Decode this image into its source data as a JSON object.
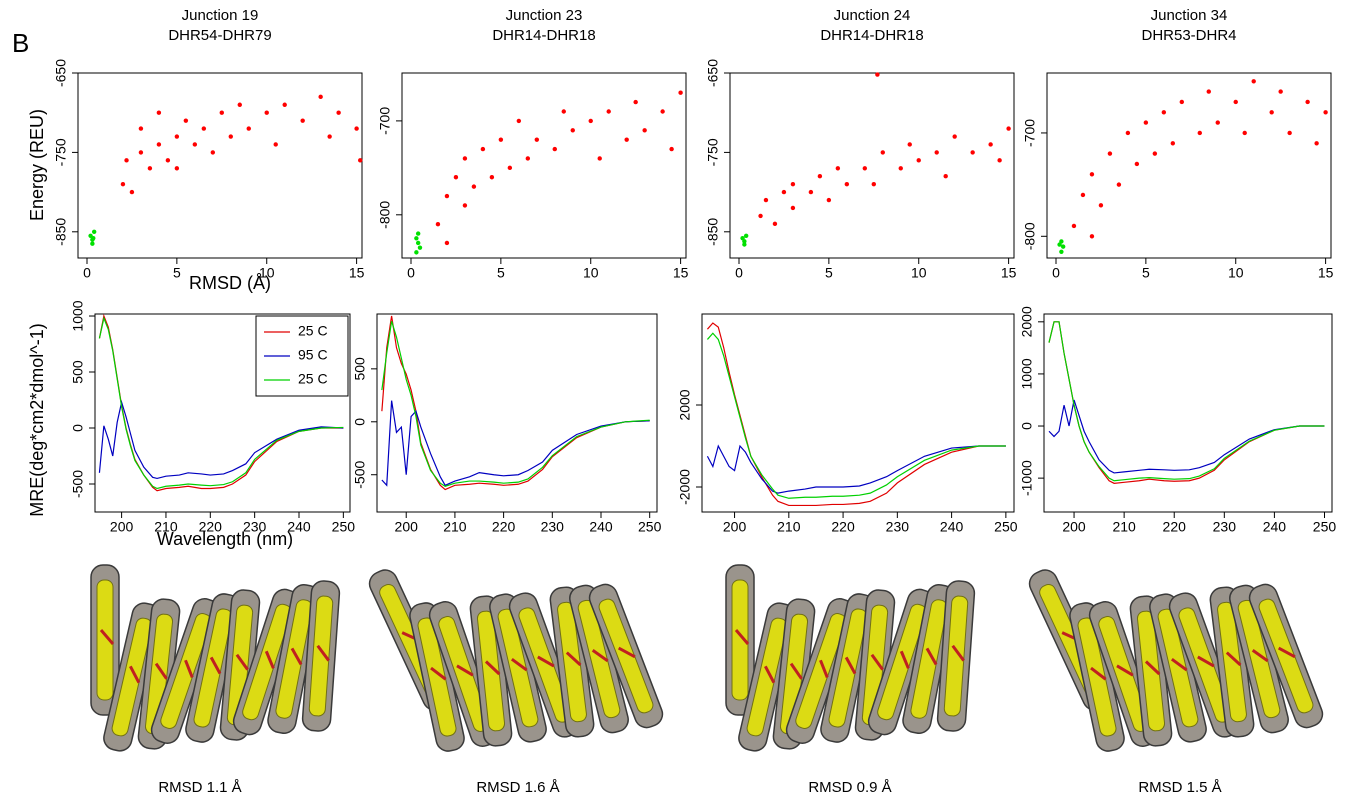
{
  "panel_label": "B",
  "chart_data": [
    {
      "type": "scatter",
      "title": "Junction 19",
      "subtitle": "DHR54-DHR79",
      "xlabel": "RMSD (Å)",
      "ylabel": "Energy (REU)",
      "xlim": [
        -0.5,
        15.3
      ],
      "ylim": [
        -883,
        -650
      ],
      "xticks": [
        0,
        5,
        10,
        15
      ],
      "yticks": [
        -650,
        -750,
        -850
      ],
      "series": [
        {
          "color": "#ff0000",
          "x": [
            2,
            2.2,
            2.5,
            3,
            3,
            3.5,
            4,
            4,
            4.5,
            5,
            5,
            5.5,
            6,
            6.5,
            7,
            7.5,
            8,
            8.5,
            9,
            10,
            10.5,
            11,
            12,
            13,
            13.5,
            14,
            15,
            15.2
          ],
          "values": [
            -790,
            -760,
            -800,
            -750,
            -720,
            -770,
            -740,
            -700,
            -760,
            -730,
            -770,
            -710,
            -740,
            -720,
            -750,
            -700,
            -730,
            -690,
            -720,
            -700,
            -740,
            -690,
            -710,
            -680,
            -730,
            -700,
            -720,
            -760
          ]
        },
        {
          "color": "#00e000",
          "x": [
            0.2,
            0.3,
            0.4,
            0.3,
            0.35
          ],
          "values": [
            -855,
            -860,
            -850,
            -865,
            -858
          ]
        }
      ]
    },
    {
      "type": "scatter",
      "title": "Junction 23",
      "subtitle": "DHR14-DHR18",
      "xlim": [
        -0.5,
        15.3
      ],
      "ylim": [
        -846,
        -649
      ],
      "xticks": [
        0,
        5,
        10,
        15
      ],
      "yticks": [
        -700,
        -800
      ],
      "series": [
        {
          "color": "#ff0000",
          "x": [
            1.5,
            2,
            2,
            2.5,
            3,
            3,
            3.5,
            4,
            4.5,
            5,
            5.5,
            6,
            6.5,
            7,
            8,
            8.5,
            9,
            10,
            10.5,
            11,
            12,
            12.5,
            13,
            14,
            14.5,
            15
          ],
          "values": [
            -810,
            -780,
            -830,
            -760,
            -790,
            -740,
            -770,
            -730,
            -760,
            -720,
            -750,
            -700,
            -740,
            -720,
            -730,
            -690,
            -710,
            -700,
            -740,
            -690,
            -720,
            -680,
            -710,
            -690,
            -730,
            -670
          ]
        },
        {
          "color": "#00e000",
          "x": [
            0.3,
            0.4,
            0.5,
            0.4,
            0.3
          ],
          "values": [
            -825,
            -830,
            -835,
            -820,
            -840
          ]
        }
      ]
    },
    {
      "type": "scatter",
      "title": "Junction 24",
      "subtitle": "DHR14-DHR18",
      "xlim": [
        -0.5,
        15.3
      ],
      "ylim": [
        -883,
        -650
      ],
      "xticks": [
        0,
        5,
        10,
        15
      ],
      "yticks": [
        -650,
        -750,
        -850
      ],
      "series": [
        {
          "color": "#ff0000",
          "x": [
            1.2,
            1.5,
            2,
            2.5,
            3,
            3,
            4,
            4.5,
            5,
            5.5,
            6,
            7,
            7.5,
            8,
            9,
            9.5,
            10,
            11,
            11.5,
            12,
            13,
            14,
            14.5,
            15,
            7.7
          ],
          "values": [
            -830,
            -810,
            -840,
            -800,
            -820,
            -790,
            -800,
            -780,
            -810,
            -770,
            -790,
            -770,
            -790,
            -750,
            -770,
            -740,
            -760,
            -750,
            -780,
            -730,
            -750,
            -740,
            -760,
            -720,
            -652
          ]
        },
        {
          "color": "#00e000",
          "x": [
            0.2,
            0.3,
            0.4,
            0.3
          ],
          "values": [
            -858,
            -862,
            -855,
            -866
          ]
        }
      ]
    },
    {
      "type": "scatter",
      "title": "Junction 34",
      "subtitle": "DHR53-DHR4",
      "xlim": [
        -0.5,
        15.3
      ],
      "ylim": [
        -821,
        -642
      ],
      "xticks": [
        0,
        5,
        10,
        15
      ],
      "yticks": [
        -700,
        -800
      ],
      "series": [
        {
          "color": "#ff0000",
          "x": [
            1,
            1.5,
            2,
            2,
            2.5,
            3,
            3.5,
            4,
            4.5,
            5,
            5.5,
            6,
            6.5,
            7,
            8,
            8.5,
            9,
            10,
            10.5,
            11,
            12,
            12.5,
            13,
            14,
            14.5,
            15
          ],
          "values": [
            -790,
            -760,
            -800,
            -740,
            -770,
            -720,
            -750,
            -700,
            -730,
            -690,
            -720,
            -680,
            -710,
            -670,
            -700,
            -660,
            -690,
            -670,
            -700,
            -650,
            -680,
            -660,
            -700,
            -670,
            -710,
            -680
          ]
        },
        {
          "color": "#00e000",
          "x": [
            0.3,
            0.4,
            0.3,
            0.2
          ],
          "values": [
            -805,
            -810,
            -815,
            -808
          ]
        }
      ]
    },
    {
      "type": "line",
      "xlabel": "Wavelength (nm)",
      "ylabel": "MRE(deg*cm2*dmol^-1)",
      "legend": "top-right",
      "xlim": [
        194,
        251.5
      ],
      "ylim": [
        -750,
        1018
      ],
      "xticks": [
        200,
        210,
        220,
        230,
        240,
        250
      ],
      "yticks": [
        1000,
        500,
        0,
        -500
      ],
      "x": [
        195,
        196,
        197,
        198,
        199,
        200,
        201,
        202,
        203,
        205,
        207,
        208,
        210,
        213,
        215,
        218,
        220,
        223,
        225,
        228,
        230,
        235,
        240,
        245,
        250
      ],
      "series": [
        {
          "name": "25 C",
          "color": "#e00000",
          "values": [
            800,
            1000,
            900,
            700,
            450,
            200,
            0,
            -150,
            -280,
            -420,
            -530,
            -560,
            -540,
            -530,
            -520,
            -540,
            -540,
            -530,
            -500,
            -420,
            -300,
            -120,
            -30,
            0,
            0
          ]
        },
        {
          "name": "95 C",
          "color": "#0000c0",
          "values": [
            -400,
            20,
            -100,
            -250,
            50,
            230,
            100,
            -50,
            -200,
            -350,
            -440,
            -450,
            -430,
            -420,
            -400,
            -410,
            -420,
            -410,
            -380,
            -320,
            -220,
            -100,
            -20,
            10,
            0
          ]
        },
        {
          "name": "25 C",
          "color": "#00d000",
          "values": [
            800,
            980,
            880,
            690,
            440,
            190,
            -10,
            -160,
            -290,
            -420,
            -520,
            -540,
            -520,
            -510,
            -500,
            -510,
            -515,
            -505,
            -480,
            -400,
            -280,
            -110,
            -30,
            0,
            5
          ]
        }
      ]
    },
    {
      "type": "line",
      "xlim": [
        194,
        251.5
      ],
      "ylim": [
        -852,
        1018
      ],
      "xticks": [
        200,
        210,
        220,
        230,
        240,
        250
      ],
      "yticks": [
        500,
        0,
        -500
      ],
      "x": [
        195,
        196,
        197,
        198,
        199,
        200,
        201,
        202,
        203,
        205,
        207,
        208,
        210,
        213,
        215,
        218,
        220,
        223,
        225,
        228,
        230,
        235,
        240,
        245,
        250
      ],
      "series": [
        {
          "color": "#e00000",
          "values": [
            100,
            700,
            1000,
            700,
            550,
            450,
            300,
            100,
            -200,
            -450,
            -600,
            -640,
            -600,
            -590,
            -580,
            -590,
            -600,
            -590,
            -560,
            -450,
            -330,
            -150,
            -50,
            0,
            10
          ]
        },
        {
          "color": "#0000c0",
          "values": [
            -550,
            -600,
            200,
            -100,
            -50,
            -500,
            50,
            100,
            -50,
            -300,
            -520,
            -600,
            -560,
            -520,
            -480,
            -500,
            -510,
            -500,
            -460,
            -380,
            -270,
            -120,
            -40,
            0,
            10
          ]
        },
        {
          "color": "#00d000",
          "values": [
            300,
            650,
            950,
            800,
            600,
            400,
            250,
            50,
            -220,
            -460,
            -580,
            -610,
            -580,
            -560,
            -560,
            -570,
            -580,
            -570,
            -540,
            -430,
            -320,
            -140,
            -50,
            0,
            15
          ]
        }
      ]
    },
    {
      "type": "line",
      "xlim": [
        194,
        251.5
      ],
      "ylim": [
        -3220,
        6440
      ],
      "xticks": [
        200,
        210,
        220,
        230,
        240,
        250
      ],
      "yticks": [
        2000,
        -2000
      ],
      "x": [
        195,
        196,
        197,
        198,
        199,
        200,
        201,
        202,
        203,
        205,
        207,
        208,
        210,
        213,
        215,
        218,
        220,
        223,
        225,
        228,
        230,
        235,
        240,
        245,
        250
      ],
      "series": [
        {
          "color": "#e00000",
          "values": [
            5700,
            6000,
            5800,
            4800,
            3600,
            2500,
            1500,
            500,
            -500,
            -1500,
            -2400,
            -2700,
            -2900,
            -2900,
            -2900,
            -2850,
            -2850,
            -2800,
            -2700,
            -2300,
            -1800,
            -900,
            -300,
            0,
            0
          ]
        },
        {
          "color": "#0000c0",
          "values": [
            -500,
            -1000,
            0,
            -500,
            -1000,
            -1200,
            0,
            -300,
            -800,
            -1600,
            -2200,
            -2300,
            -2200,
            -2100,
            -2000,
            -2000,
            -2000,
            -1950,
            -1800,
            -1500,
            -1200,
            -500,
            -100,
            0,
            0
          ]
        },
        {
          "color": "#00d000",
          "values": [
            5200,
            5500,
            5200,
            4400,
            3400,
            2400,
            1400,
            400,
            -500,
            -1400,
            -2100,
            -2400,
            -2550,
            -2500,
            -2500,
            -2450,
            -2450,
            -2400,
            -2300,
            -1900,
            -1500,
            -700,
            -200,
            0,
            0
          ]
        }
      ]
    },
    {
      "type": "line",
      "xlim": [
        194,
        251.5
      ],
      "ylim": [
        -1650,
        2150
      ],
      "xticks": [
        200,
        210,
        220,
        230,
        240,
        250
      ],
      "yticks": [
        2000,
        1000,
        0,
        -1000
      ],
      "x": [
        195,
        196,
        197,
        198,
        199,
        200,
        201,
        202,
        203,
        205,
        207,
        208,
        210,
        213,
        215,
        218,
        220,
        223,
        225,
        228,
        230,
        235,
        240,
        245,
        250
      ],
      "series": [
        {
          "color": "#e00000",
          "values": [
            1600,
            2000,
            2000,
            1400,
            900,
            400,
            0,
            -300,
            -500,
            -800,
            -1050,
            -1100,
            -1080,
            -1050,
            -1020,
            -1050,
            -1060,
            -1050,
            -1000,
            -850,
            -650,
            -300,
            -80,
            0,
            0
          ]
        },
        {
          "color": "#0000c0",
          "values": [
            -100,
            -200,
            -100,
            400,
            0,
            500,
            200,
            -100,
            -300,
            -650,
            -850,
            -900,
            -880,
            -850,
            -830,
            -840,
            -850,
            -840,
            -800,
            -700,
            -550,
            -250,
            -70,
            0,
            0
          ]
        },
        {
          "color": "#00d000",
          "values": [
            1600,
            2000,
            2000,
            1400,
            900,
            400,
            0,
            -300,
            -500,
            -780,
            -1000,
            -1050,
            -1030,
            -1000,
            -990,
            -1010,
            -1020,
            -1010,
            -960,
            -820,
            -620,
            -290,
            -80,
            0,
            0
          ]
        }
      ]
    }
  ],
  "structures": [
    {
      "caption": "RMSD 1.1 Å"
    },
    {
      "caption": "RMSD 1.6 Å"
    },
    {
      "caption": "RMSD 0.9 Å"
    },
    {
      "caption": "RMSD 1.5 Å"
    }
  ]
}
